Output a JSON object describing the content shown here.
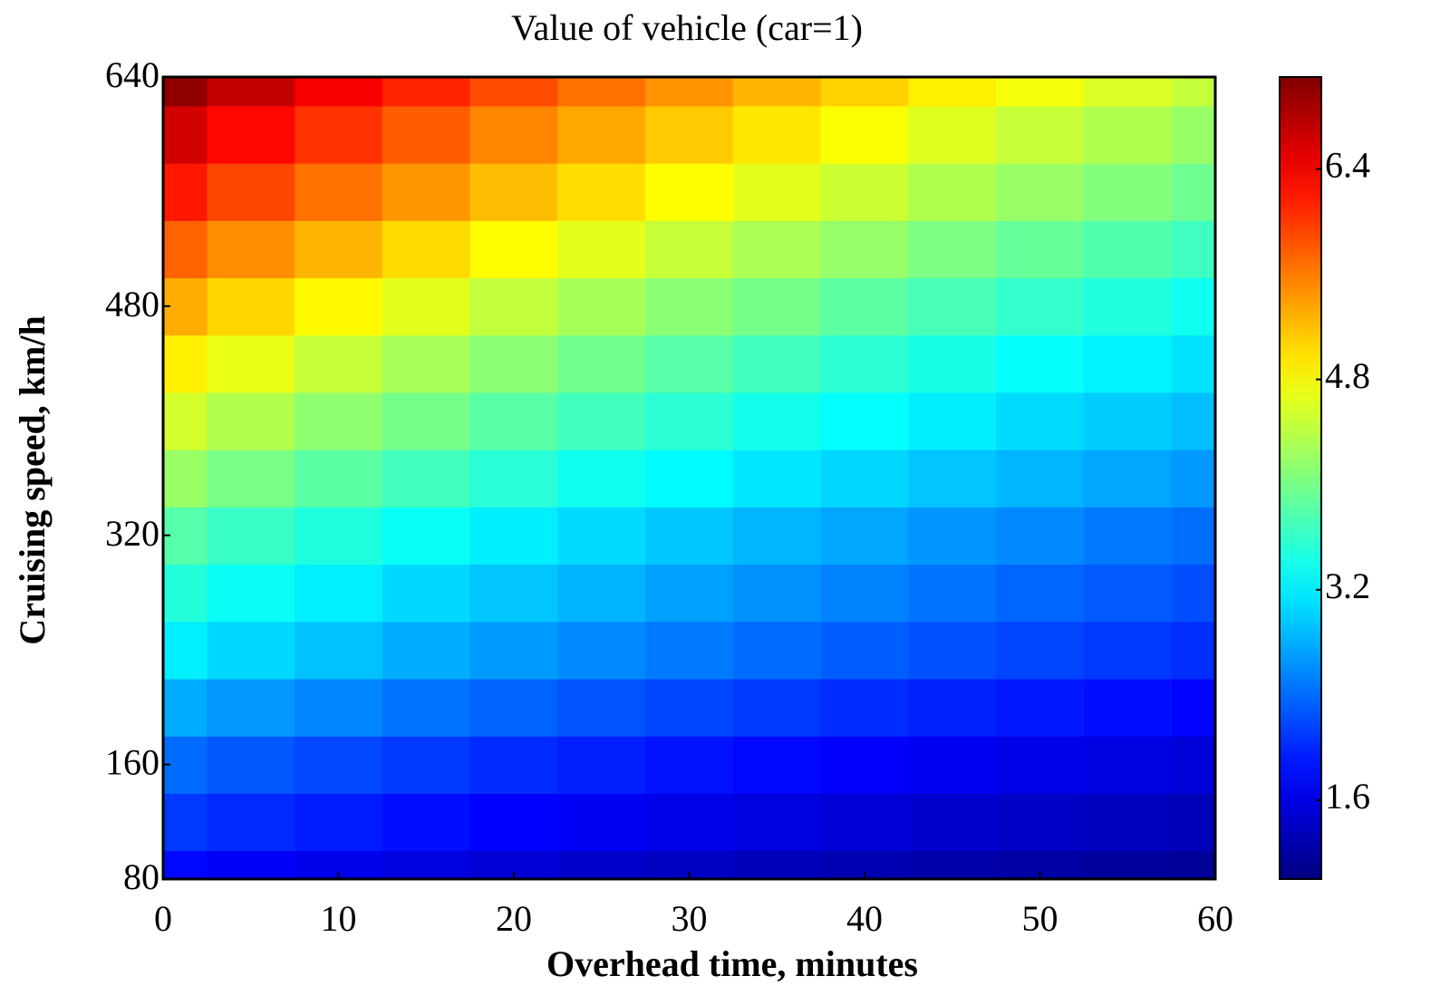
{
  "chart_data": {
    "type": "heatmap",
    "title": "Value of vehicle (car=1)",
    "xlabel": "Overhead time, minutes",
    "ylabel": "Cruising speed, km/h",
    "colormap": "jet",
    "x": [
      0,
      5,
      10,
      15,
      20,
      25,
      30,
      35,
      40,
      45,
      50,
      55,
      60
    ],
    "y": [
      80,
      120,
      160,
      200,
      240,
      280,
      320,
      360,
      400,
      440,
      480,
      520,
      560,
      600,
      640
    ],
    "z": [
      [
        1.8,
        1.72,
        1.64,
        1.58,
        1.51,
        1.45,
        1.4,
        1.35,
        1.31,
        1.26,
        1.22,
        1.18,
        1.15
      ],
      [
        2.1,
        2.01,
        1.92,
        1.84,
        1.76,
        1.7,
        1.63,
        1.58,
        1.52,
        1.47,
        1.42,
        1.38,
        1.34
      ],
      [
        2.4,
        2.29,
        2.19,
        2.1,
        2.02,
        1.94,
        1.87,
        1.8,
        1.74,
        1.68,
        1.63,
        1.58,
        1.53
      ],
      [
        2.8,
        2.67,
        2.56,
        2.45,
        2.35,
        2.26,
        2.18,
        2.1,
        2.03,
        1.96,
        1.9,
        1.84,
        1.78
      ],
      [
        3.2,
        3.06,
        2.92,
        2.8,
        2.69,
        2.59,
        2.49,
        2.4,
        2.32,
        2.24,
        2.17,
        2.1,
        2.04
      ],
      [
        3.5,
        3.34,
        3.2,
        3.06,
        2.94,
        2.83,
        2.72,
        2.63,
        2.54,
        2.45,
        2.37,
        2.3,
        2.23
      ],
      [
        3.8,
        3.63,
        3.47,
        3.33,
        3.19,
        3.07,
        2.96,
        2.85,
        2.76,
        2.66,
        2.58,
        2.5,
        2.42
      ],
      [
        4.2,
        4.01,
        3.83,
        3.68,
        3.53,
        3.39,
        3.27,
        3.15,
        3.05,
        2.94,
        2.85,
        2.76,
        2.68
      ],
      [
        4.55,
        4.35,
        4.15,
        3.98,
        3.82,
        3.68,
        3.54,
        3.41,
        3.3,
        3.19,
        3.08,
        2.99,
        2.9
      ],
      [
        4.9,
        4.68,
        4.47,
        4.29,
        4.12,
        3.96,
        3.81,
        3.68,
        3.55,
        3.43,
        3.32,
        3.22,
        3.12
      ],
      [
        5.3,
        5.06,
        4.84,
        4.64,
        4.45,
        4.28,
        4.12,
        3.98,
        3.84,
        3.71,
        3.59,
        3.48,
        3.38
      ],
      [
        5.75,
        5.49,
        5.25,
        5.03,
        4.83,
        4.65,
        4.47,
        4.31,
        4.17,
        4.03,
        3.9,
        3.78,
        3.66
      ],
      [
        6.2,
        5.92,
        5.66,
        5.43,
        5.21,
        5.01,
        4.82,
        4.65,
        4.5,
        4.34,
        4.2,
        4.07,
        3.95
      ],
      [
        6.6,
        6.3,
        6.03,
        5.78,
        5.54,
        5.33,
        5.13,
        4.95,
        4.79,
        4.62,
        4.47,
        4.34,
        4.2
      ],
      [
        7.0,
        6.69,
        6.39,
        6.13,
        5.88,
        5.66,
        5.45,
        5.25,
        5.08,
        4.9,
        4.75,
        4.6,
        4.46
      ]
    ],
    "xlim": [
      0,
      60
    ],
    "xticks": [
      0,
      10,
      20,
      30,
      40,
      50,
      60
    ],
    "ylim": [
      80,
      640
    ],
    "yticks": [
      80,
      160,
      320,
      480,
      640
    ],
    "clim": [
      1.0,
      7.1
    ],
    "cticks": [
      1.6,
      3.2,
      4.8,
      6.4
    ]
  }
}
